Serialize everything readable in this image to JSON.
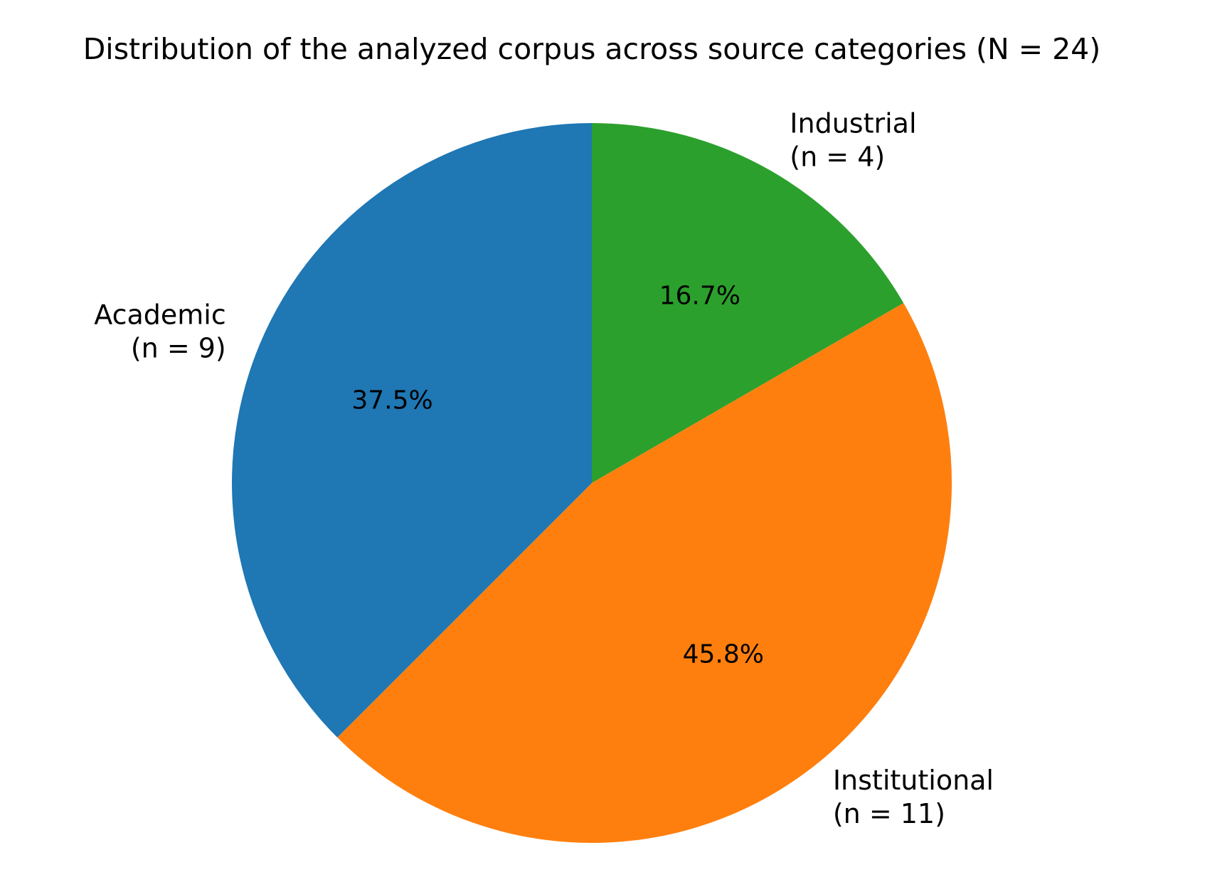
{
  "chart_data": {
    "type": "pie",
    "title": "Distribution of the analyzed corpus across source categories (N = 24)",
    "start_angle_deg": 90,
    "direction": "clockwise",
    "slices": [
      {
        "category": "Industrial",
        "count_label": "(n = 4)",
        "value": 4,
        "pct_label": "16.7%",
        "color": "#2ca02c"
      },
      {
        "category": "Institutional",
        "count_label": "(n = 11)",
        "value": 11,
        "pct_label": "45.8%",
        "color": "#ff7f0e"
      },
      {
        "category": "Academic",
        "count_label": "(n = 9)",
        "value": 9,
        "pct_label": "37.5%",
        "color": "#1f77b4"
      }
    ]
  }
}
